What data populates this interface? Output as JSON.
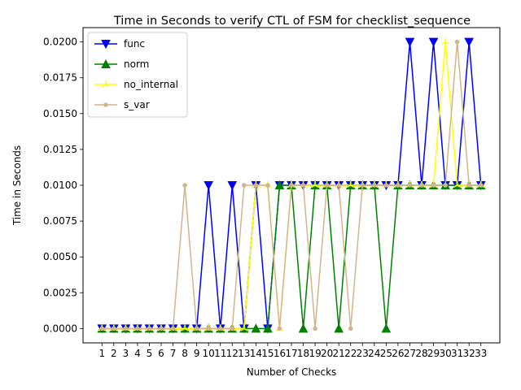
{
  "chart_data": {
    "type": "line",
    "title": "Time in Seconds to verify CTL of FSM for checklist_sequence",
    "xlabel": "Number of Checks",
    "ylabel": "Time in Seconds",
    "x": [
      1,
      2,
      3,
      4,
      5,
      6,
      7,
      8,
      9,
      10,
      11,
      12,
      13,
      14,
      15,
      16,
      17,
      18,
      19,
      20,
      21,
      22,
      23,
      24,
      25,
      26,
      27,
      28,
      29,
      30,
      31,
      32,
      33
    ],
    "ylim": [
      -0.001,
      0.021
    ],
    "yticks": [
      "0.0000",
      "0.0025",
      "0.0050",
      "0.0075",
      "0.0100",
      "0.0125",
      "0.0150",
      "0.0175",
      "0.0200"
    ],
    "grid": false,
    "legend_position": "top-left",
    "series": [
      {
        "name": "func",
        "color": "#0000ff",
        "marker": "triangle-down",
        "values": [
          0,
          0,
          0,
          0,
          0,
          0,
          0,
          0,
          0,
          0.01,
          0,
          0.01,
          0,
          0.01,
          0,
          0.01,
          0.01,
          0.01,
          0.01,
          0.01,
          0.01,
          0.01,
          0.01,
          0.01,
          0.01,
          0.01,
          0.02,
          0.01,
          0.02,
          0.01,
          0.01,
          0.02,
          0.01
        ]
      },
      {
        "name": "norm",
        "color": "#008000",
        "marker": "triangle-up",
        "values": [
          0,
          0,
          0,
          0,
          0,
          0,
          0,
          0,
          0,
          0,
          0,
          0,
          0,
          0,
          0,
          0.01,
          0.01,
          0,
          0.01,
          0.01,
          0,
          0.01,
          0.01,
          0.01,
          0,
          0.01,
          0.01,
          0.01,
          0.01,
          0.01,
          0.01,
          0.01,
          0.01
        ]
      },
      {
        "name": "no_internal",
        "color": "#ffff00",
        "marker": "tri",
        "values": [
          0,
          0,
          0,
          0,
          0,
          0,
          0,
          0,
          0,
          0,
          0,
          0,
          0,
          0.01,
          0.01,
          0,
          0.01,
          0.01,
          0.01,
          0.01,
          0.01,
          0.01,
          0.01,
          0.01,
          0.01,
          0.01,
          0.01,
          0.01,
          0.01,
          0.02,
          0.01,
          0.01,
          0.01
        ]
      },
      {
        "name": "s_var",
        "color": "#d2b48c",
        "marker": "dot",
        "values": [
          0,
          0,
          0,
          0,
          0,
          0,
          0,
          0.01,
          0,
          0,
          0,
          0,
          0.01,
          0.01,
          0.01,
          0,
          0.01,
          0.01,
          0,
          0.01,
          0.01,
          0,
          0.01,
          0.01,
          0.01,
          0.01,
          0.01,
          0.01,
          0.01,
          0.01,
          0.02,
          0.01,
          0.01
        ]
      }
    ]
  }
}
